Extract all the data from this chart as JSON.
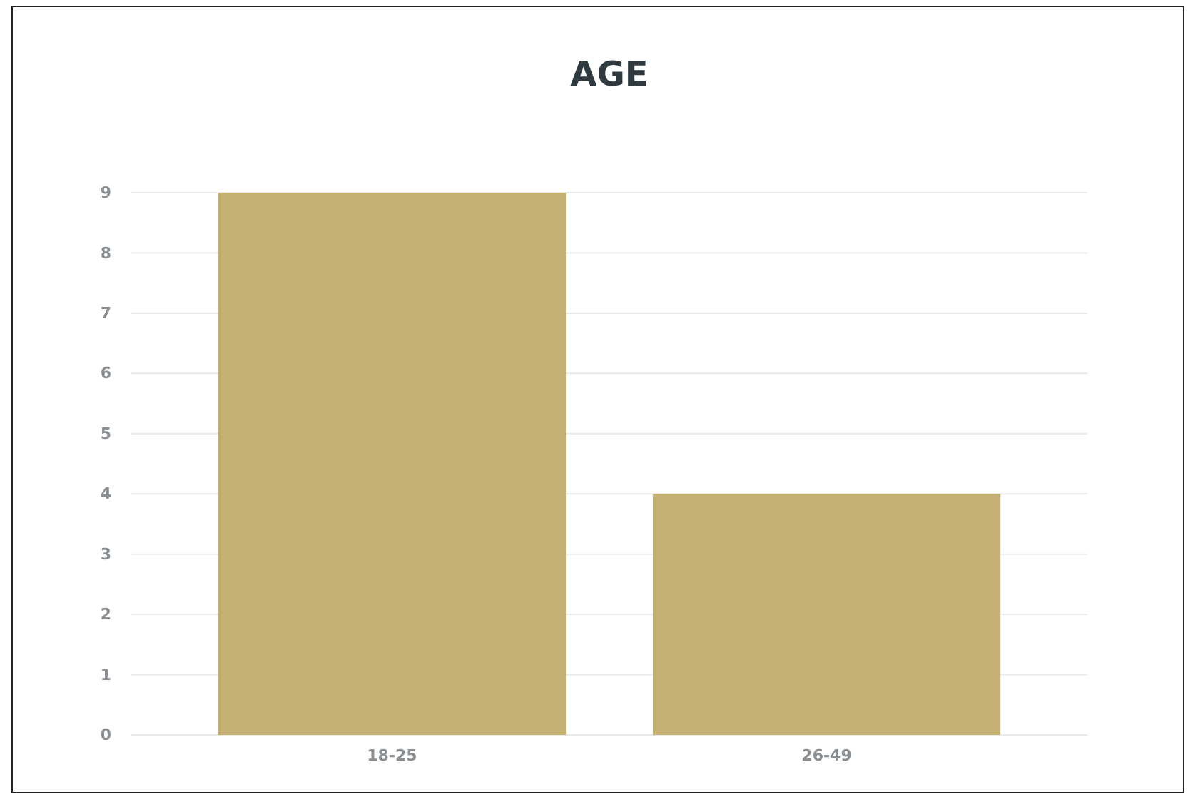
{
  "chart_data": {
    "type": "bar",
    "title": "AGE",
    "categories": [
      "18-25",
      "26-49"
    ],
    "values": [
      9,
      4
    ],
    "color": "#c5b073",
    "ylim": [
      0,
      9
    ],
    "yticks": [
      0,
      1,
      2,
      3,
      4,
      5,
      6,
      7,
      8,
      9
    ],
    "grid": "y"
  }
}
